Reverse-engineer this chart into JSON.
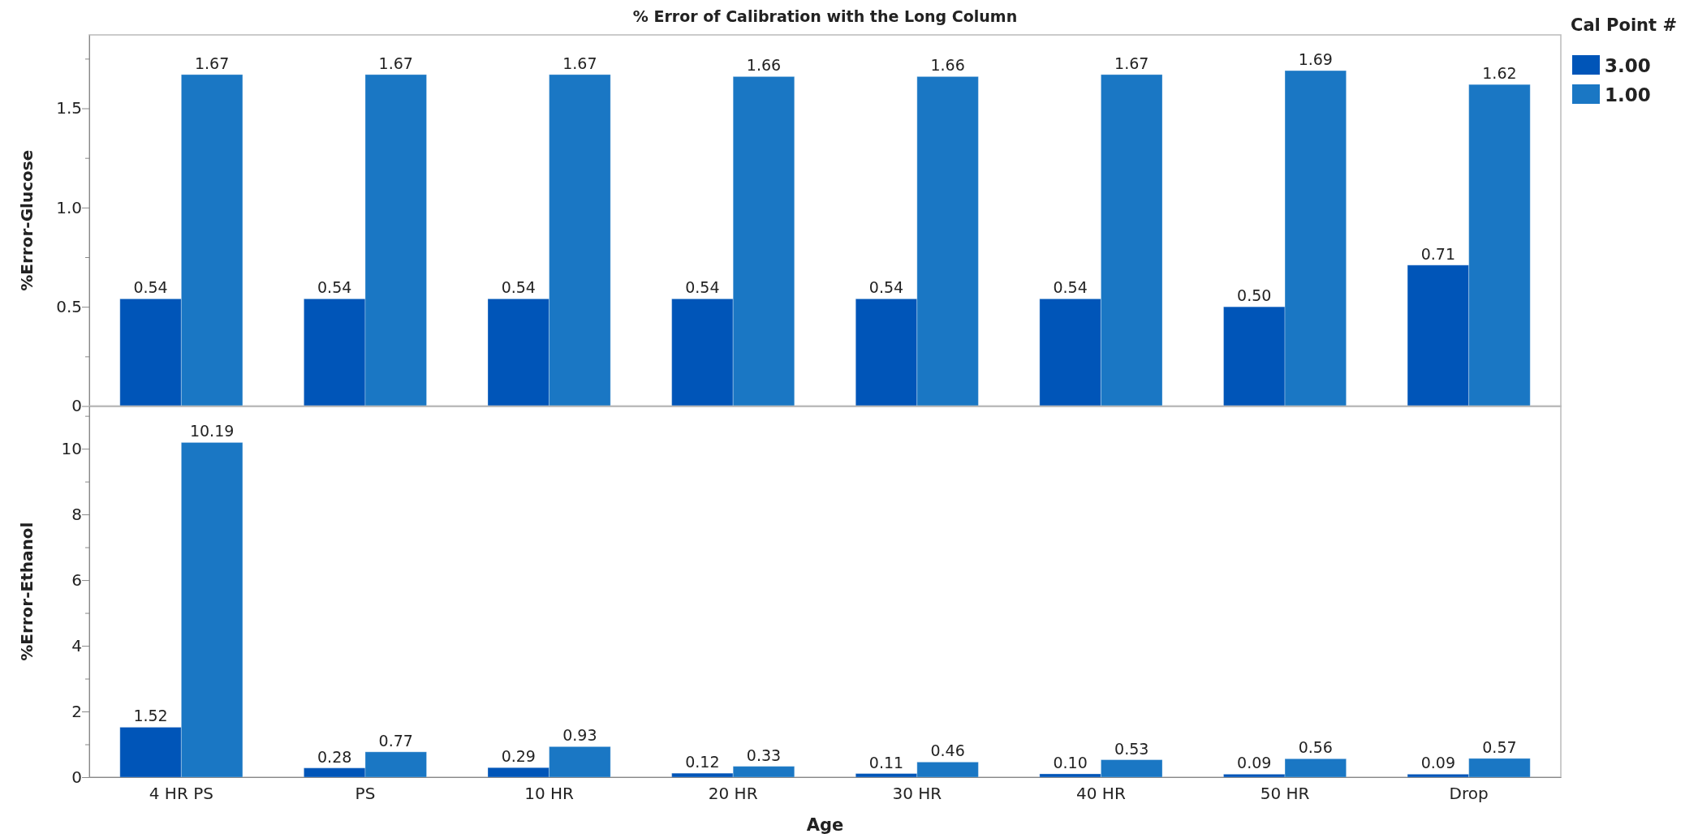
{
  "chart_data": [
    {
      "type": "bar",
      "title": "% Error of Calibration with the Long Column",
      "ylabel": "%Error-Glucose",
      "legend_title": "Cal Point #",
      "legend": "top right",
      "tick_labels": "y",
      "categories": [
        null,
        null,
        null,
        null,
        null,
        null,
        null,
        null
      ],
      "series": [
        {
          "name": "3.00",
          "color": "#0055b8",
          "values": [
            0.54,
            0.54,
            0.54,
            0.54,
            0.54,
            0.54,
            0.5,
            0.71
          ],
          "value_labels": [
            "0.54",
            "0.54",
            "0.54",
            "0.54",
            "0.54",
            "0.54",
            "0.50",
            "0.71"
          ]
        },
        {
          "name": "1.00",
          "color": "#1a77c4",
          "values": [
            1.67,
            1.67,
            1.67,
            1.66,
            1.66,
            1.67,
            1.69,
            1.62
          ],
          "value_labels": [
            "1.67",
            "1.67",
            "1.67",
            "1.66",
            "1.66",
            "1.67",
            "1.69",
            "1.62"
          ]
        }
      ],
      "ylim": [
        0,
        1.87
      ],
      "yticks": [
        0,
        {
          "value": 0.25,
          "label": null
        },
        {
          "value": 0.5,
          "label": "0.5"
        },
        {
          "value": 0.75,
          "label": null
        },
        {
          "value": 1,
          "label": "1.0"
        },
        {
          "value": 1.25,
          "label": null
        },
        {
          "value": 1.5,
          "label": "1.5"
        },
        {
          "value": 1.75,
          "label": null
        }
      ]
    },
    {
      "type": "bar",
      "ylabel": "%Error-Ethanol",
      "xlabel": "Age",
      "categories": [
        "4 HR PS",
        "PS",
        "10 HR",
        "20 HR",
        "30 HR",
        "40 HR",
        "50 HR",
        "Drop"
      ],
      "series": [
        {
          "color": "#0055b8",
          "values": [
            1.52,
            0.28,
            0.29,
            0.12,
            0.11,
            0.1,
            0.09,
            0.09
          ],
          "value_labels": [
            "1.52",
            "0.28",
            "0.29",
            "0.12",
            "0.11",
            "0.10",
            "0.09",
            "0.09"
          ]
        },
        {
          "color": "#1a77c4",
          "values": [
            10.19,
            0.77,
            0.93,
            0.33,
            0.46,
            0.53,
            0.56,
            0.57
          ],
          "value_labels": [
            "10.19",
            "0.77",
            "0.93",
            "0.33",
            "0.46",
            "0.53",
            "0.56",
            "0.57"
          ]
        }
      ],
      "ylim": [
        0,
        11.3
      ],
      "yticks": [
        0,
        {
          "value": 1,
          "label": null
        },
        2,
        {
          "value": 3,
          "label": null
        },
        4,
        {
          "value": 5,
          "label": null
        },
        6,
        {
          "value": 7,
          "label": null
        },
        8,
        {
          "value": 9,
          "label": null
        },
        10,
        {
          "value": 11,
          "label": null
        }
      ]
    }
  ]
}
